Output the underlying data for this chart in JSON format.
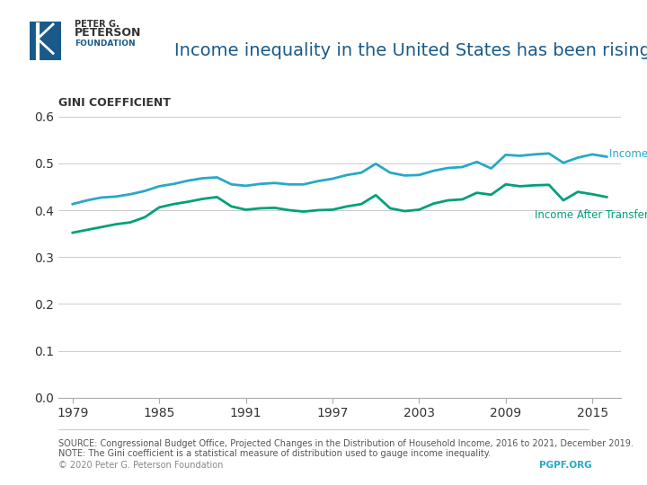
{
  "title": "Income inequality in the United States has been rising",
  "title_color": "#1a5a8a",
  "ylabel": "Gini Coefficient",
  "ylim": [
    0.0,
    0.6
  ],
  "yticks": [
    0.0,
    0.1,
    0.2,
    0.3,
    0.4,
    0.5,
    0.6
  ],
  "xticks": [
    1979,
    1985,
    1991,
    1997,
    2003,
    2009,
    2015
  ],
  "xlim": [
    1978,
    2017
  ],
  "background_color": "#ffffff",
  "line1_color": "#29a8c7",
  "line2_color": "#00a07a",
  "line1_label": "Income Before Transfers and Taxes",
  "line2_label": "Income After Transfers and Taxes",
  "source_text": "SOURCE: Congressional Budget Office, Projected Changes in the Distribution of Household Income, 2016 to 2021, December 2019.",
  "note_text": "NOTE: The Gini coefficient is a statistical measure of distribution used to gauge income inequality.",
  "copyright_text": "© 2020 Peter G. Peterson Foundation",
  "pgpf_text": "PGPF.ORG",
  "years": [
    1979,
    1980,
    1981,
    1982,
    1983,
    1984,
    1985,
    1986,
    1987,
    1988,
    1989,
    1990,
    1991,
    1992,
    1993,
    1994,
    1995,
    1996,
    1997,
    1998,
    1999,
    2000,
    2001,
    2002,
    2003,
    2004,
    2005,
    2006,
    2007,
    2008,
    2009,
    2010,
    2011,
    2012,
    2013,
    2014,
    2015,
    2016
  ],
  "before_transfers": [
    0.413,
    0.421,
    0.427,
    0.429,
    0.434,
    0.441,
    0.451,
    0.456,
    0.463,
    0.468,
    0.47,
    0.455,
    0.452,
    0.456,
    0.458,
    0.455,
    0.455,
    0.462,
    0.467,
    0.475,
    0.48,
    0.499,
    0.48,
    0.474,
    0.475,
    0.484,
    0.49,
    0.492,
    0.503,
    0.489,
    0.518,
    0.516,
    0.519,
    0.521,
    0.501,
    0.512,
    0.519,
    0.514
  ],
  "after_transfers": [
    0.352,
    0.358,
    0.364,
    0.37,
    0.374,
    0.385,
    0.406,
    0.413,
    0.418,
    0.424,
    0.428,
    0.408,
    0.401,
    0.404,
    0.405,
    0.4,
    0.397,
    0.4,
    0.401,
    0.408,
    0.413,
    0.432,
    0.404,
    0.398,
    0.401,
    0.414,
    0.421,
    0.423,
    0.437,
    0.433,
    0.455,
    0.451,
    0.453,
    0.454,
    0.421,
    0.439,
    0.434,
    0.428
  ]
}
